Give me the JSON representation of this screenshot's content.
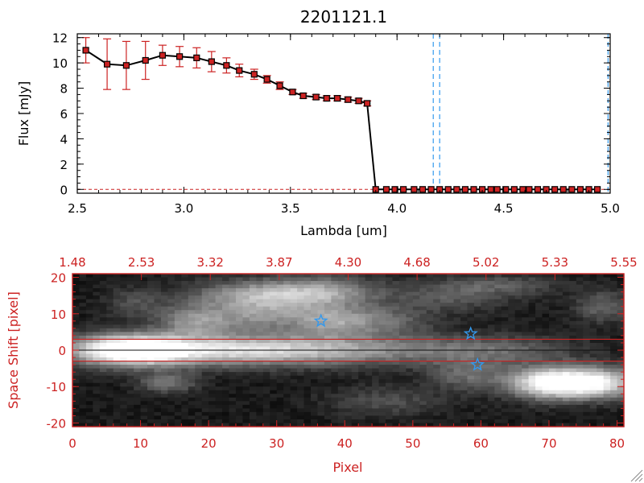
{
  "chart_data": [
    {
      "type": "line",
      "title": "2201121.1",
      "xlabel": "Lambda [um]",
      "ylabel": "Flux [mJy]",
      "xlim": [
        2.5,
        5.0
      ],
      "ylim": [
        -0.3,
        12.3
      ],
      "xticks": [
        "2.5",
        "3.0",
        "3.5",
        "4.0",
        "4.5",
        "5.0"
      ],
      "yticks": [
        "0",
        "2",
        "4",
        "6",
        "8",
        "10",
        "12"
      ],
      "series": [
        {
          "color": "#000000",
          "marker_color": "#cc2222",
          "error_color": "#cc2222",
          "x": [
            2.54,
            2.64,
            2.73,
            2.82,
            2.9,
            2.98,
            3.06,
            3.13,
            3.2,
            3.26,
            3.33,
            3.39,
            3.45,
            3.51,
            3.56,
            3.62,
            3.67,
            3.72,
            3.77,
            3.82,
            3.86,
            3.9,
            3.95,
            3.99,
            4.03,
            4.08,
            4.12,
            4.16,
            4.2,
            4.24,
            4.28,
            4.32,
            4.36,
            4.4,
            4.44,
            4.47,
            4.51,
            4.55,
            4.59,
            4.62,
            4.66,
            4.7,
            4.74,
            4.78,
            4.82,
            4.86,
            4.9,
            4.94
          ],
          "y": [
            11.0,
            9.9,
            9.8,
            10.2,
            10.6,
            10.5,
            10.4,
            10.1,
            9.8,
            9.4,
            9.1,
            8.7,
            8.2,
            7.7,
            7.4,
            7.3,
            7.2,
            7.2,
            7.1,
            7.0,
            6.8,
            0.0,
            0.0,
            0.0,
            0.0,
            0.0,
            0.0,
            0.0,
            0.0,
            0.0,
            0.0,
            0.0,
            0.0,
            0.0,
            0.0,
            0.0,
            0.0,
            0.0,
            0.0,
            0.0,
            0.0,
            0.0,
            0.0,
            0.0,
            0.0,
            0.0,
            0.0,
            0.0
          ],
          "err": [
            1.0,
            2.0,
            1.9,
            1.5,
            0.8,
            0.8,
            0.8,
            0.8,
            0.6,
            0.5,
            0.4,
            0.3,
            0.3,
            0.2,
            0.2,
            0.2,
            0.2,
            0.2,
            0.2,
            0.2,
            0.2,
            0,
            0,
            0,
            0,
            0,
            0,
            0,
            0,
            0,
            0,
            0,
            0,
            0,
            0,
            0,
            0,
            0,
            0,
            0,
            0,
            0,
            0,
            0,
            0,
            0,
            0,
            0
          ]
        }
      ],
      "vlines": [
        {
          "x": 4.17,
          "color": "#3399ee",
          "style": "dashed"
        },
        {
          "x": 4.2,
          "color": "#3399ee",
          "style": "dashed"
        },
        {
          "x": 4.99,
          "color": "#3399ee",
          "style": "dashed"
        }
      ],
      "hline": {
        "y": 0,
        "color": "#cc2222",
        "style": "dashed"
      },
      "grid": false
    },
    {
      "type": "heatmap",
      "xlabel": "Pixel",
      "ylabel": "Space Shift [pixel]",
      "top_axis_ticks": [
        "1.48",
        "2.53",
        "3.32",
        "3.87",
        "4.30",
        "4.68",
        "5.02",
        "5.33",
        "5.55"
      ],
      "xlim": [
        0,
        81
      ],
      "ylim": [
        -21,
        21
      ],
      "xticks": [
        "0",
        "10",
        "20",
        "30",
        "40",
        "50",
        "60",
        "70",
        "80"
      ],
      "yticks": [
        "-20",
        "-10",
        "0",
        "10",
        "20"
      ],
      "colormap": "gray",
      "axis_color": "#cc2222",
      "extraction_lines": [
        {
          "y": 3,
          "color": "#cc2222"
        },
        {
          "y": -3,
          "color": "#cc2222"
        }
      ],
      "center_line": {
        "y": 0,
        "color": "#111111"
      },
      "markers": [
        {
          "x": 36.5,
          "y": 8,
          "symbol": "star",
          "color": "#3399ee"
        },
        {
          "x": 58.5,
          "y": 4.5,
          "symbol": "star",
          "color": "#3399ee"
        },
        {
          "x": 59.5,
          "y": -4,
          "symbol": "star",
          "color": "#3399ee"
        }
      ],
      "sources": [
        {
          "x": 8,
          "y": 0,
          "sx": 6,
          "sy": 3,
          "a": 1.0
        },
        {
          "x": 20,
          "y": 0,
          "sx": 10,
          "sy": 3,
          "a": 0.55
        },
        {
          "x": 34,
          "y": 0,
          "sx": 10,
          "sy": 3,
          "a": 0.4
        },
        {
          "x": 50,
          "y": 0,
          "sx": 12,
          "sy": 3,
          "a": 0.25
        },
        {
          "x": 64,
          "y": 0,
          "sx": 8,
          "sy": 3,
          "a": 0.18
        },
        {
          "x": 76,
          "y": -9,
          "sx": 5,
          "sy": 3,
          "a": 0.95
        },
        {
          "x": 69,
          "y": -9,
          "sx": 4,
          "sy": 3,
          "a": 0.65
        },
        {
          "x": 27,
          "y": 15,
          "sx": 7,
          "sy": 3,
          "a": 0.5
        },
        {
          "x": 37,
          "y": 16,
          "sx": 6,
          "sy": 3,
          "a": 0.45
        },
        {
          "x": 18,
          "y": 8,
          "sx": 4,
          "sy": 3,
          "a": 0.45
        },
        {
          "x": 28,
          "y": 9,
          "sx": 5,
          "sy": 3,
          "a": 0.38
        },
        {
          "x": 38,
          "y": 8,
          "sx": 4,
          "sy": 3,
          "a": 0.42
        },
        {
          "x": 46,
          "y": 8,
          "sx": 5,
          "sy": 3,
          "a": 0.3
        },
        {
          "x": 14,
          "y": -9,
          "sx": 3,
          "sy": 2,
          "a": 0.35
        },
        {
          "x": 56,
          "y": 15,
          "sx": 6,
          "sy": 3,
          "a": 0.25
        },
        {
          "x": 64,
          "y": 18,
          "sx": 6,
          "sy": 2,
          "a": 0.2
        },
        {
          "x": 58,
          "y": -7,
          "sx": 4,
          "sy": 3,
          "a": 0.3
        },
        {
          "x": 46,
          "y": -14,
          "sx": 6,
          "sy": 3,
          "a": 0.2
        },
        {
          "x": 9,
          "y": 13,
          "sx": 3,
          "sy": 3,
          "a": 0.2
        },
        {
          "x": 78,
          "y": 12,
          "sx": 3,
          "sy": 3,
          "a": 0.3
        }
      ]
    }
  ]
}
